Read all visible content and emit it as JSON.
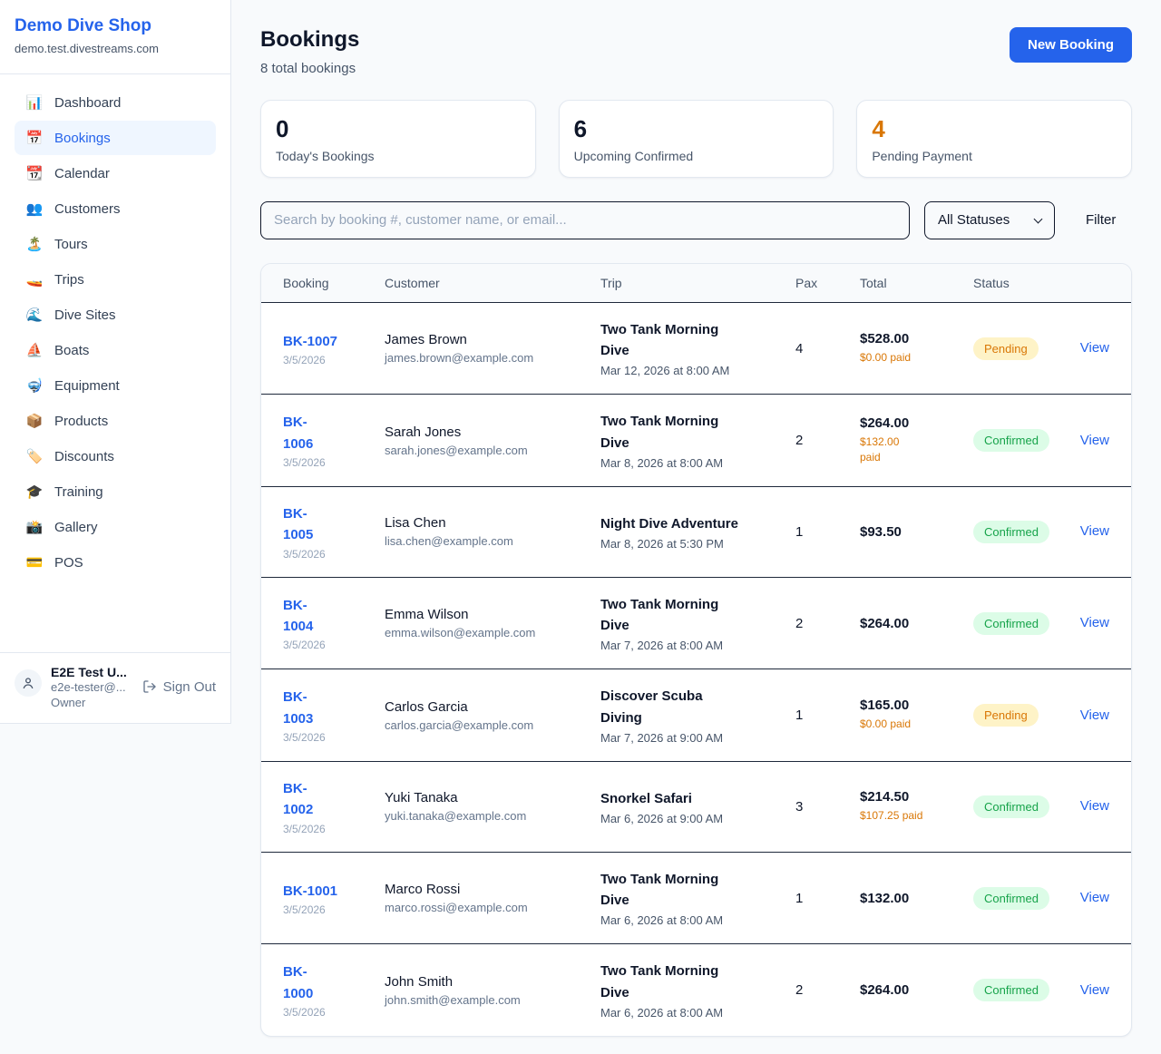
{
  "sidebar": {
    "title": "Demo Dive Shop",
    "domain": "demo.test.divestreams.com",
    "items": [
      {
        "label": "Dashboard",
        "icon": "📊",
        "active": false
      },
      {
        "label": "Bookings",
        "icon": "📅",
        "active": true
      },
      {
        "label": "Calendar",
        "icon": "📆",
        "active": false
      },
      {
        "label": "Customers",
        "icon": "👥",
        "active": false
      },
      {
        "label": "Tours",
        "icon": "🏝️",
        "active": false
      },
      {
        "label": "Trips",
        "icon": "🚤",
        "active": false
      },
      {
        "label": "Dive Sites",
        "icon": "🌊",
        "active": false
      },
      {
        "label": "Boats",
        "icon": "⛵",
        "active": false
      },
      {
        "label": "Equipment",
        "icon": "🤿",
        "active": false
      },
      {
        "label": "Products",
        "icon": "📦",
        "active": false
      },
      {
        "label": "Discounts",
        "icon": "🏷️",
        "active": false
      },
      {
        "label": "Training",
        "icon": "🎓",
        "active": false
      },
      {
        "label": "Gallery",
        "icon": "📸",
        "active": false
      },
      {
        "label": "POS",
        "icon": "💳",
        "active": false
      }
    ],
    "user": {
      "name": "E2E Test U...",
      "email": "e2e-tester@...",
      "role": "Owner",
      "sign_out_label": "Sign Out"
    }
  },
  "header": {
    "title": "Bookings",
    "subtitle": "8 total bookings",
    "new_booking_label": "New Booking"
  },
  "stats": [
    {
      "value": "0",
      "label": "Today's Bookings",
      "highlight": false
    },
    {
      "value": "6",
      "label": "Upcoming Confirmed",
      "highlight": false
    },
    {
      "value": "4",
      "label": "Pending Payment",
      "highlight": true
    }
  ],
  "controls": {
    "search_placeholder": "Search by booking #, customer name, or email...",
    "status_filter_value": "All Statuses",
    "filter_label": "Filter"
  },
  "table": {
    "columns": [
      "Booking",
      "Customer",
      "Trip",
      "Pax",
      "Total",
      "Status"
    ],
    "view_label": "View",
    "rows": [
      {
        "id_lines": [
          "BK-1007"
        ],
        "date": "3/5/2026",
        "customer": "James Brown",
        "email": "james.brown@example.com",
        "trip_lines": [
          "Two Tank Morning",
          "Dive"
        ],
        "trip_date": "Mar 12, 2026 at 8:00 AM",
        "pax": "4",
        "total": "$528.00",
        "paid_lines": [
          "$0.00 paid"
        ],
        "status": "Pending"
      },
      {
        "id_lines": [
          "BK-",
          "1006"
        ],
        "date": "3/5/2026",
        "customer": "Sarah Jones",
        "email": "sarah.jones@example.com",
        "trip_lines": [
          "Two Tank Morning",
          "Dive"
        ],
        "trip_date": "Mar 8, 2026 at 8:00 AM",
        "pax": "2",
        "total": "$264.00",
        "paid_lines": [
          "$132.00",
          "paid"
        ],
        "status": "Confirmed"
      },
      {
        "id_lines": [
          "BK-",
          "1005"
        ],
        "date": "3/5/2026",
        "customer": "Lisa Chen",
        "email": "lisa.chen@example.com",
        "trip_lines": [
          "Night Dive Adventure"
        ],
        "trip_date": "Mar 8, 2026 at 5:30 PM",
        "pax": "1",
        "total": "$93.50",
        "paid_lines": [],
        "status": "Confirmed"
      },
      {
        "id_lines": [
          "BK-",
          "1004"
        ],
        "date": "3/5/2026",
        "customer": "Emma Wilson",
        "email": "emma.wilson@example.com",
        "trip_lines": [
          "Two Tank Morning",
          "Dive"
        ],
        "trip_date": "Mar 7, 2026 at 8:00 AM",
        "pax": "2",
        "total": "$264.00",
        "paid_lines": [],
        "status": "Confirmed"
      },
      {
        "id_lines": [
          "BK-",
          "1003"
        ],
        "date": "3/5/2026",
        "customer": "Carlos Garcia",
        "email": "carlos.garcia@example.com",
        "trip_lines": [
          "Discover Scuba",
          "Diving"
        ],
        "trip_date": "Mar 7, 2026 at 9:00 AM",
        "pax": "1",
        "total": "$165.00",
        "paid_lines": [
          "$0.00 paid"
        ],
        "status": "Pending"
      },
      {
        "id_lines": [
          "BK-",
          "1002"
        ],
        "date": "3/5/2026",
        "customer": "Yuki Tanaka",
        "email": "yuki.tanaka@example.com",
        "trip_lines": [
          "Snorkel Safari"
        ],
        "trip_date": "Mar 6, 2026 at 9:00 AM",
        "pax": "3",
        "total": "$214.50",
        "paid_lines": [
          "$107.25 paid"
        ],
        "status": "Confirmed"
      },
      {
        "id_lines": [
          "BK-1001"
        ],
        "date": "3/5/2026",
        "customer": "Marco Rossi",
        "email": "marco.rossi@example.com",
        "trip_lines": [
          "Two Tank Morning",
          "Dive"
        ],
        "trip_date": "Mar 6, 2026 at 8:00 AM",
        "pax": "1",
        "total": "$132.00",
        "paid_lines": [],
        "status": "Confirmed"
      },
      {
        "id_lines": [
          "BK-",
          "1000"
        ],
        "date": "3/5/2026",
        "customer": "John Smith",
        "email": "john.smith@example.com",
        "trip_lines": [
          "Two Tank Morning",
          "Dive"
        ],
        "trip_date": "Mar 6, 2026 at 8:00 AM",
        "pax": "2",
        "total": "$264.00",
        "paid_lines": [],
        "status": "Confirmed"
      }
    ]
  },
  "colors": {
    "accent_blue": "#2563eb",
    "pending_bg": "#fef3c7",
    "pending_text": "#d97706",
    "confirmed_bg": "#dcfce7",
    "confirmed_text": "#16a34a",
    "paid_orange": "#d97706",
    "page_bg": "#f8fafc",
    "row_divider": "#1e293b"
  }
}
